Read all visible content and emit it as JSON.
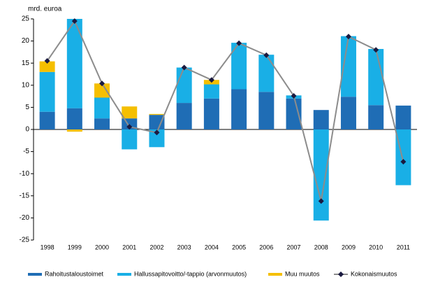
{
  "chart_data": {
    "type": "bar",
    "y_label": "mrd. euroa",
    "categories": [
      "1998",
      "1999",
      "2000",
      "2001",
      "2002",
      "2003",
      "2004",
      "2005",
      "2006",
      "2007",
      "2008",
      "2009",
      "2010",
      "2011"
    ],
    "series": [
      {
        "name": "Rahoitustaloustoimet",
        "color": "#1f6db5",
        "values": [
          4,
          4.8,
          2.5,
          2.5,
          3.3,
          6,
          7,
          9.1,
          8.5,
          7,
          4.4,
          7.4,
          5.5,
          5.4
        ]
      },
      {
        "name": "Hallussapitovoitto/-tappio (arvonmuutos)",
        "color": "#19afe6",
        "values": [
          9,
          20.2,
          4.7,
          -4.5,
          -4,
          8,
          3.2,
          10.5,
          8.4,
          0.7,
          -20.6,
          13.7,
          12.7,
          -12.6
        ]
      },
      {
        "name": "Muu muutos",
        "color": "#f5bf00",
        "values": [
          2.4,
          -0.5,
          3.2,
          2.7,
          0.2,
          0,
          1,
          0,
          0,
          0,
          0,
          0,
          0,
          0
        ]
      },
      {
        "name": "Kokonaismuutos",
        "type": "line",
        "color": "#8c8c8c",
        "marker_color": "#1a1a40",
        "values": [
          15.5,
          24.5,
          10.4,
          0.6,
          -0.7,
          14,
          11.2,
          19.5,
          16.8,
          7.6,
          -16.2,
          21,
          18,
          -7.3
        ]
      }
    ],
    "ylim": [
      -25,
      25
    ],
    "yticks": [
      -25,
      -20,
      -15,
      -10,
      -5,
      0,
      5,
      10,
      15,
      20,
      25
    ]
  }
}
